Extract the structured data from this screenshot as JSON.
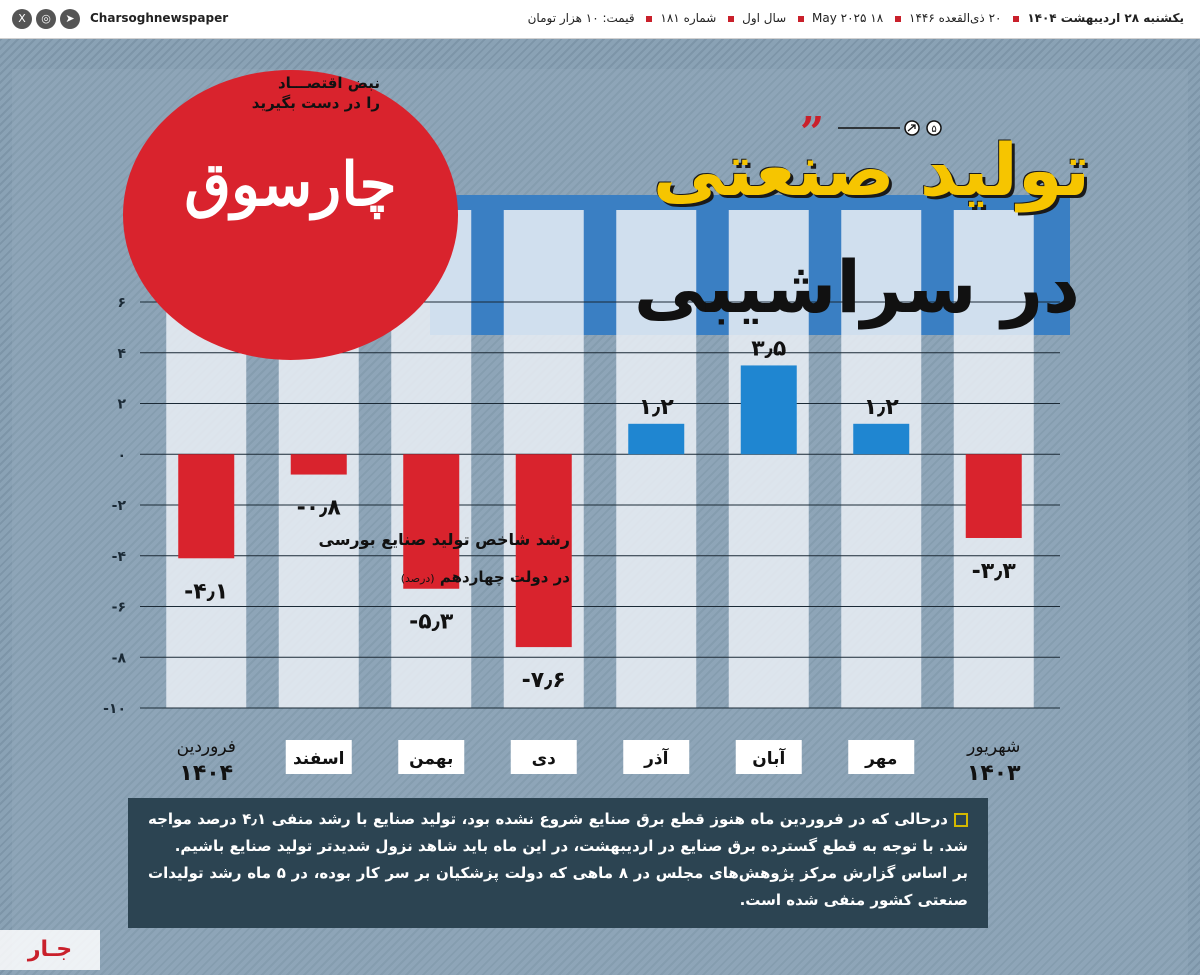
{
  "topbar": {
    "handle": "Charsoghnewspaper",
    "social_icons": [
      "x-icon",
      "instagram-icon",
      "telegram-icon"
    ],
    "masthead": [
      "یکشنبه ۲۸ اردیبهشت ۱۴۰۴",
      "۲۰ ذی‌القعده ۱۴۴۶",
      "۱۸ May ۲۰۲۵",
      "سال اول",
      "شماره ۱۸۱",
      "قیمت: ۱۰ هزار تومان"
    ]
  },
  "logo": {
    "tagline_1": "نبض اقتصـــاد",
    "tagline_2": "را در دست بگیرید",
    "wordmark": "چارسوق"
  },
  "headline": {
    "line1": "تولید صنعتی",
    "line2": "در سراشیبی",
    "counter": "۵"
  },
  "colors": {
    "positive": "#1f86d1",
    "negative": "#d9232d",
    "title_yellow": "#f6c500",
    "logo_red": "#d9232d",
    "note_bg": "#2c4452"
  },
  "chart_data": {
    "type": "bar",
    "title": "رشد شاخص تولید صنایع بورسی",
    "subtitle": "در دولت چهاردهم",
    "unit_note": "(درصد)",
    "ylim": [
      -10,
      6
    ],
    "yticks": [
      6,
      4,
      2,
      0,
      -2,
      -4,
      -6,
      -8,
      -10
    ],
    "ytick_labels": [
      "۶",
      "۴",
      "۲",
      "۰",
      "-۲",
      "-۴",
      "-۶",
      "-۸",
      "-۱۰"
    ],
    "grid": true,
    "categories": [
      "شهریور ۱۴۰۳",
      "مهر",
      "آبان",
      "آذر",
      "دی",
      "بهمن",
      "اسفند",
      "فروردین ۱۴۰۴"
    ],
    "category_labels": [
      {
        "main": "شهریور",
        "year": "۱۴۰۳"
      },
      {
        "main": "مهر",
        "year": ""
      },
      {
        "main": "آبان",
        "year": ""
      },
      {
        "main": "آذر",
        "year": ""
      },
      {
        "main": "دی",
        "year": ""
      },
      {
        "main": "بهمن",
        "year": ""
      },
      {
        "main": "اسفند",
        "year": ""
      },
      {
        "main": "فروردین",
        "year": "۱۴۰۴"
      }
    ],
    "values": [
      -3.3,
      1.2,
      3.5,
      1.2,
      -7.6,
      -5.3,
      -0.8,
      -4.1
    ],
    "data_labels": [
      "-۳٫۳",
      "۱٫۲",
      "۳٫۵",
      "۱٫۲",
      "-۷٫۶",
      "-۵٫۳",
      "-۰٫۸",
      "-۴٫۱"
    ]
  },
  "note": {
    "paragraph_1": "درحالی که در فروردین ماه هنوز قطع برق صنایع شروع نشده بود، تولید صنایع با رشد منفی ۴٫۱ درصد مواجه شد. با توجه به قطع گسترده برق صنایع در اردیبهشت، در این ماه باید شاهد نزول شدیدتر تولید صنایع باشیم.",
    "paragraph_2": "بر اساس گزارش مرکز پژوهش‌های مجلس در ۸ ماهی که دولت پزشکیان بر سر کار بوده، در ۵ ماه رشد تولیدات صنعتی کشور منفی شده است."
  },
  "watermark": "جـار"
}
